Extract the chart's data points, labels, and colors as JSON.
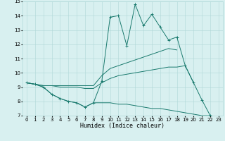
{
  "xlabel": "Humidex (Indice chaleur)",
  "x_values": [
    0,
    1,
    2,
    3,
    4,
    5,
    6,
    7,
    8,
    9,
    10,
    11,
    12,
    13,
    14,
    15,
    16,
    17,
    18,
    19,
    20,
    21,
    22,
    23
  ],
  "line1": [
    9.3,
    9.2,
    9.0,
    8.5,
    8.2,
    8.0,
    7.9,
    7.6,
    7.9,
    9.4,
    13.9,
    14.0,
    11.9,
    14.8,
    13.3,
    14.1,
    13.2,
    12.3,
    12.5,
    10.5,
    9.3,
    8.1,
    7.0,
    null
  ],
  "line2": [
    9.3,
    9.2,
    9.1,
    9.1,
    9.1,
    9.1,
    9.1,
    9.1,
    9.1,
    9.8,
    10.3,
    10.5,
    10.7,
    10.9,
    11.1,
    11.3,
    11.5,
    11.7,
    11.6,
    null,
    null,
    null,
    null,
    null
  ],
  "line3": [
    9.3,
    9.2,
    9.1,
    9.1,
    9.0,
    9.0,
    9.0,
    8.9,
    8.9,
    9.3,
    9.6,
    9.8,
    9.9,
    10.0,
    10.1,
    10.2,
    10.3,
    10.4,
    10.4,
    10.5,
    9.3,
    null,
    null,
    null
  ],
  "line4": [
    9.3,
    9.2,
    9.0,
    8.5,
    8.2,
    8.0,
    7.9,
    7.6,
    7.9,
    7.9,
    7.9,
    7.8,
    7.8,
    7.7,
    7.6,
    7.5,
    7.5,
    7.4,
    7.3,
    7.2,
    7.1,
    7.0,
    7.0,
    6.9
  ],
  "color": "#1a7a6e",
  "bg_color": "#d8f0f0",
  "grid_color": "#b0d8d8",
  "xlim": [
    -0.5,
    23.5
  ],
  "ylim": [
    7,
    15
  ],
  "yticks": [
    7,
    8,
    9,
    10,
    11,
    12,
    13,
    14,
    15
  ],
  "xticks": [
    0,
    1,
    2,
    3,
    4,
    5,
    6,
    7,
    8,
    9,
    10,
    11,
    12,
    13,
    14,
    15,
    16,
    17,
    18,
    19,
    20,
    21,
    22,
    23
  ],
  "xlabel_fontsize": 6,
  "tick_fontsize": 5
}
